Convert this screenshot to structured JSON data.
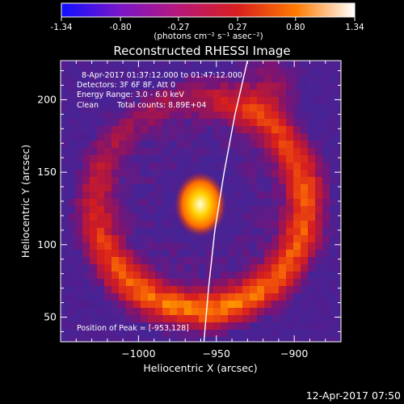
{
  "colorbar": {
    "tick_labels": [
      "-1.34",
      "-0.80",
      "-0.27",
      "0.27",
      "0.80",
      "1.34"
    ],
    "tick_values": [
      -1.34,
      -0.8,
      -0.27,
      0.27,
      0.8,
      1.34
    ],
    "range": [
      -1.34,
      1.34
    ],
    "units": "(photons cm⁻² s⁻¹ asec⁻²)",
    "colors": [
      "#1010ff",
      "#7a16c8",
      "#b8187a",
      "#d81e1e",
      "#ff7a00",
      "#ffffff"
    ]
  },
  "chart_data": {
    "type": "heatmap",
    "title": "Reconstructed RHESSI Image",
    "xlabel": "Heliocentric X (arcsec)",
    "ylabel": "Heliocentric Y (arcsec)",
    "xlim": [
      -1050,
      -870
    ],
    "ylim": [
      33,
      227
    ],
    "x_ticks": [
      -1000,
      -950,
      -900
    ],
    "x_tick_labels": [
      "−1000",
      "−950",
      "−900"
    ],
    "y_ticks": [
      50,
      100,
      150,
      200
    ],
    "y_tick_labels": [
      "50",
      "100",
      "150",
      "200"
    ],
    "annotations": [
      "8-Apr-2017 01:37:12.000 to 01:47:12.000",
      "Detectors: 3F 6F 8F, Att 0",
      "Energy Range: 3.0 - 6.0 keV",
      "Clean",
      "Total counts: 8.89E+04",
      "Position of Peak = [-953,128]"
    ],
    "peak": {
      "x": -953,
      "y": 128,
      "value": 1.34
    },
    "limb_curve": [
      [
        -958,
        33
      ],
      [
        -955,
        70
      ],
      [
        -951,
        110
      ],
      [
        -945,
        150
      ],
      [
        -938,
        190
      ],
      [
        -930,
        227
      ]
    ]
  },
  "footer": {
    "timestamp": "12-Apr-2017 07:50"
  }
}
